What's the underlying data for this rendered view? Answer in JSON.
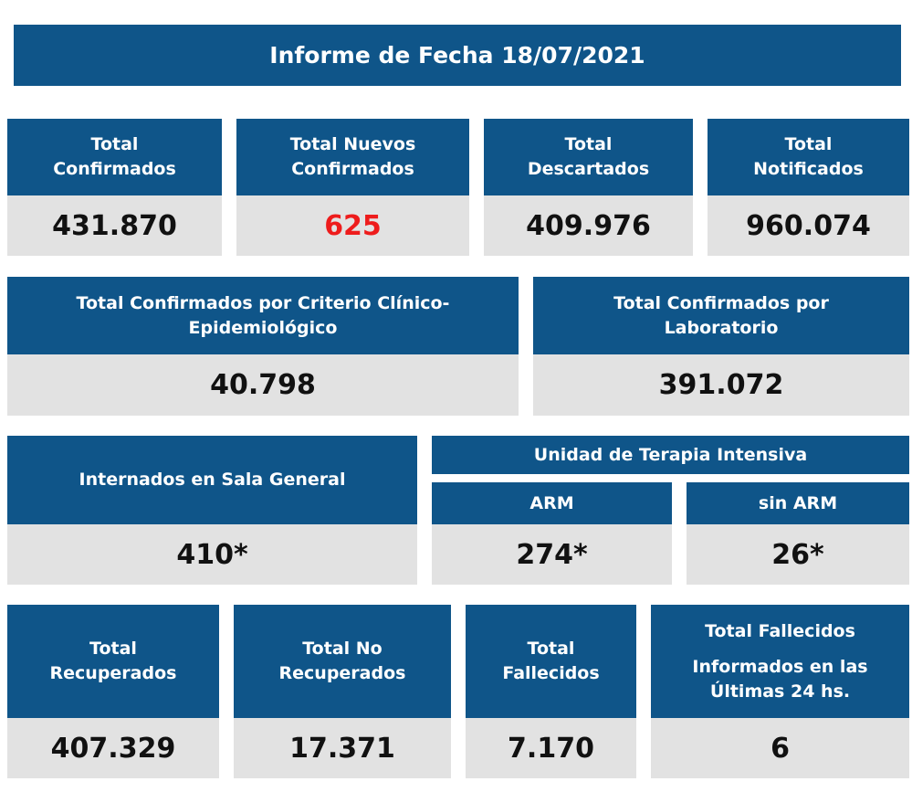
{
  "title": "Informe de Fecha 18/07/2021",
  "row1": [
    {
      "label": "Total Confirmados",
      "value": "431.870"
    },
    {
      "label": "Total Nuevos Confirmados",
      "value": "625"
    },
    {
      "label": "Total Descartados",
      "value": "409.976"
    },
    {
      "label": "Total Notificados",
      "value": "960.074"
    }
  ],
  "row2": [
    {
      "label": "Total Confirmados por Criterio Clínico-Epidemiológico",
      "value": "40.798"
    },
    {
      "label": "Total Confirmados por Laboratorio",
      "value": "391.072"
    }
  ],
  "row3": {
    "sala": {
      "label": "Internados en Sala General",
      "value": "410*"
    },
    "uti_label": "Unidad de Terapia Intensiva",
    "arm": {
      "label": "ARM",
      "value": "274*"
    },
    "sin_arm": {
      "label": "sin ARM",
      "value": "26*"
    }
  },
  "row4": [
    {
      "label": "Total Recuperados",
      "value": "407.329"
    },
    {
      "label": "Total No Recuperados",
      "value": "17.371"
    },
    {
      "label": "Total Fallecidos",
      "value": "7.170"
    },
    {
      "label": "Total Fallecidos",
      "sublabel": "Informados en las Últimas 24 hs.",
      "value": "6"
    }
  ],
  "colors": {
    "header": "#0f5589",
    "value_bg": "#e2e2e2",
    "highlight": "#ee1c1c"
  }
}
